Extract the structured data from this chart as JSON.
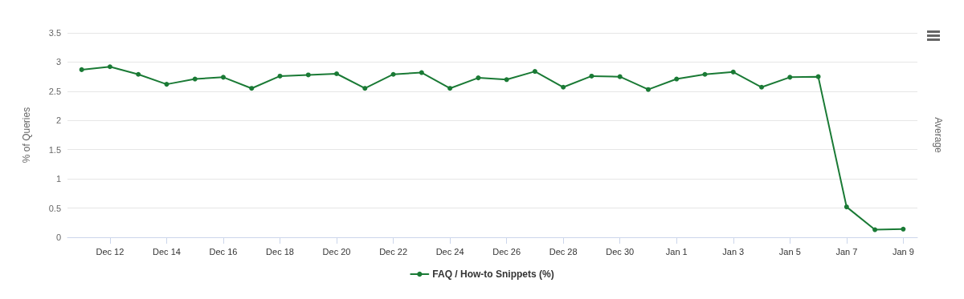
{
  "chart_data": {
    "type": "line",
    "ylabel": "% of Queries",
    "y2label": "Average",
    "categories": [
      null,
      "Dec 12",
      null,
      "Dec 14",
      null,
      "Dec 16",
      null,
      "Dec 18",
      null,
      "Dec 20",
      null,
      "Dec 22",
      null,
      "Dec 24",
      null,
      "Dec 26",
      null,
      "Dec 28",
      null,
      "Dec 30",
      null,
      "Jan 1",
      null,
      "Jan 3",
      null,
      "Jan 5",
      null,
      "Jan 7",
      null,
      "Jan 9"
    ],
    "series": [
      {
        "name": "FAQ / How-to Snippets (%)",
        "color": "#1a7a35",
        "values": [
          2.87,
          2.92,
          2.79,
          2.62,
          2.71,
          2.74,
          2.55,
          2.76,
          2.78,
          2.8,
          2.55,
          2.79,
          2.82,
          2.55,
          2.73,
          2.7,
          2.84,
          2.57,
          2.76,
          2.75,
          2.53,
          2.71,
          2.79,
          2.83,
          2.57,
          2.74,
          2.75,
          0.52,
          0.13,
          0.14
        ]
      }
    ],
    "ylim": [
      0,
      3.5
    ],
    "yticks": [
      0,
      0.5,
      1,
      1.5,
      2,
      2.5,
      3,
      3.5
    ],
    "grid": "y",
    "legend": "bottom",
    "marker": "circle",
    "line_style": "solid"
  }
}
